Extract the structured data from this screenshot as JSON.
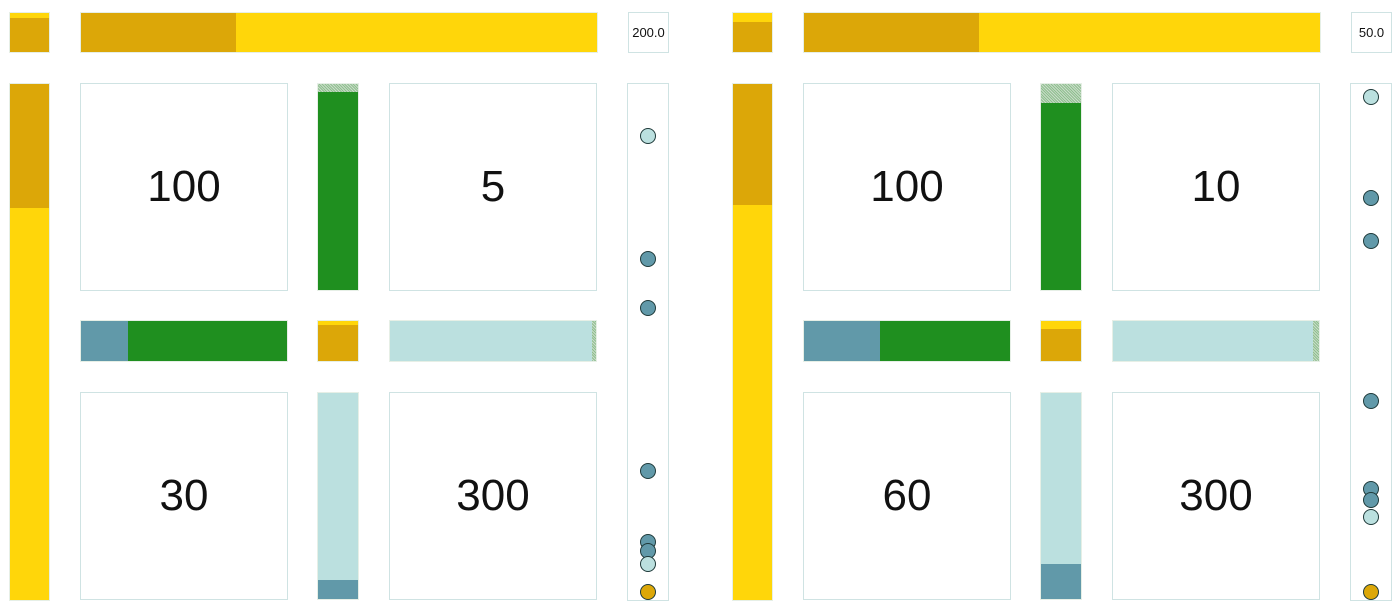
{
  "colors": {
    "gold": "#dca708",
    "yellow": "#ffd60a",
    "green": "#1f8f1f",
    "teal": "#6199a9",
    "light_teal": "#bbe0df",
    "hatch": "#9cc49c"
  },
  "panels": [
    {
      "scale_label": "200.0",
      "cells": [
        "100",
        "5",
        "30",
        "300"
      ],
      "top_bar": [
        {
          "color": "gold",
          "frac": 0.3
        },
        {
          "color": "yellow",
          "frac": 0.7
        }
      ],
      "top_left_square": [
        {
          "color": "yellow",
          "frac": 0.12
        },
        {
          "color": "gold",
          "frac": 0.88
        }
      ],
      "left_bar": [
        {
          "color": "gold",
          "frac": 0.24
        },
        {
          "color": "yellow",
          "frac": 0.76
        }
      ],
      "middle_h_left": [
        {
          "color": "teal",
          "frac": 0.23
        },
        {
          "color": "green",
          "frac": 0.77
        }
      ],
      "middle_h_right": [
        {
          "color": "light_teal",
          "frac": 0.98
        },
        {
          "color": "hatch",
          "frac": 0.02
        }
      ],
      "middle_v_top": [
        {
          "color": "hatch",
          "frac": 0.04
        },
        {
          "color": "green",
          "frac": 0.96
        }
      ],
      "middle_v_bottom": [
        {
          "color": "light_teal",
          "frac": 0.91
        },
        {
          "color": "teal",
          "frac": 0.09
        }
      ],
      "center_square": [
        {
          "color": "yellow",
          "frac": 0.1
        },
        {
          "color": "gold",
          "frac": 0.9
        }
      ],
      "dots": [
        {
          "color": "light_teal",
          "pos": 0.1
        },
        {
          "color": "teal",
          "pos": 0.34
        },
        {
          "color": "teal",
          "pos": 0.435
        },
        {
          "color": "teal",
          "pos": 0.75
        },
        {
          "color": "teal",
          "pos": 0.887
        },
        {
          "color": "teal",
          "pos": 0.905
        },
        {
          "color": "light_teal",
          "pos": 0.93
        },
        {
          "color": "gold",
          "pos": 0.998
        }
      ]
    },
    {
      "scale_label": "50.0",
      "cells": [
        "100",
        "10",
        "60",
        "300"
      ],
      "top_bar": [
        {
          "color": "gold",
          "frac": 0.34
        },
        {
          "color": "yellow",
          "frac": 0.66
        }
      ],
      "top_left_square": [
        {
          "color": "yellow",
          "frac": 0.24
        },
        {
          "color": "gold",
          "frac": 0.76
        }
      ],
      "left_bar": [
        {
          "color": "gold",
          "frac": 0.235
        },
        {
          "color": "yellow",
          "frac": 0.765
        }
      ],
      "middle_h_left": [
        {
          "color": "teal",
          "frac": 0.37
        },
        {
          "color": "green",
          "frac": 0.63
        }
      ],
      "middle_h_right": [
        {
          "color": "light_teal",
          "frac": 0.97
        },
        {
          "color": "hatch",
          "frac": 0.03
        }
      ],
      "middle_v_top": [
        {
          "color": "hatch",
          "frac": 0.09
        },
        {
          "color": "green",
          "frac": 0.91
        }
      ],
      "middle_v_bottom": [
        {
          "color": "light_teal",
          "frac": 0.83
        },
        {
          "color": "teal",
          "frac": 0.17
        }
      ],
      "center_square": [
        {
          "color": "yellow",
          "frac": 0.2
        },
        {
          "color": "gold",
          "frac": 0.8
        }
      ],
      "dots": [
        {
          "color": "light_teal",
          "pos": 0.025
        },
        {
          "color": "teal",
          "pos": 0.22
        },
        {
          "color": "teal",
          "pos": 0.305
        },
        {
          "color": "teal",
          "pos": 0.615
        },
        {
          "color": "teal",
          "pos": 0.785
        },
        {
          "color": "teal",
          "pos": 0.807
        },
        {
          "color": "light_teal",
          "pos": 0.84
        },
        {
          "color": "gold",
          "pos": 0.995
        }
      ]
    }
  ]
}
